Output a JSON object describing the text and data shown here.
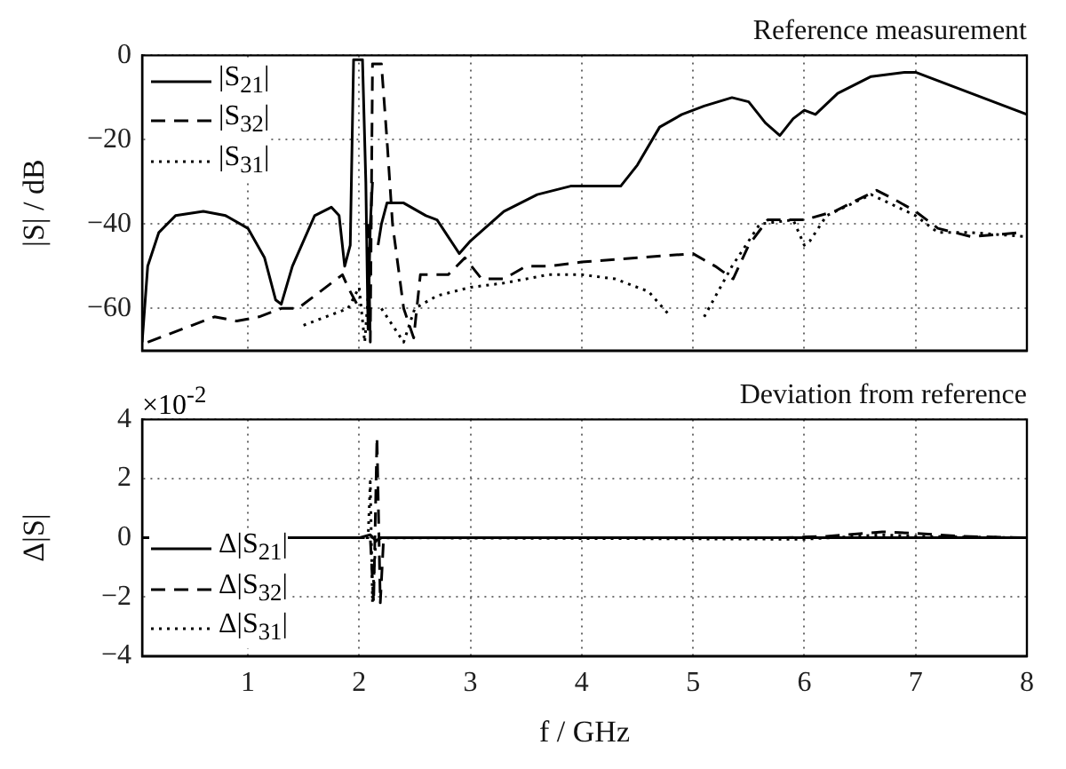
{
  "chart_data": [
    {
      "type": "line",
      "title": "Reference measurement",
      "ylabel": "|S| / dB",
      "xlim": [
        0.05,
        8
      ],
      "xticks": [
        1,
        2,
        3,
        4,
        5,
        6,
        7,
        8
      ],
      "ylim": [
        -70,
        0
      ],
      "yticks": [
        {
          "value": -60,
          "label": "−60"
        },
        {
          "value": -40,
          "label": "−40"
        },
        {
          "value": -20,
          "label": "−20"
        },
        0
      ],
      "grid": true,
      "legend": "top left",
      "tick_labels": "y",
      "series": [
        {
          "name": "|S$_{21}$|",
          "color": "#000000",
          "line_style": "solid",
          "x": [
            0.05,
            0.1,
            0.2,
            0.35,
            0.6,
            0.8,
            1.0,
            1.15,
            1.25,
            1.3,
            1.4,
            1.6,
            1.75,
            1.82,
            1.87,
            1.92,
            1.95,
            2.03,
            2.06,
            2.08,
            2.1,
            2.12,
            2.14,
            2.17,
            2.2,
            2.25,
            2.4,
            2.6,
            2.7,
            2.8,
            2.9,
            3.0,
            3.3,
            3.6,
            3.9,
            4.0,
            4.35,
            4.5,
            4.7,
            4.9,
            5.1,
            5.35,
            5.5,
            5.65,
            5.78,
            5.9,
            6.0,
            6.1,
            6.3,
            6.6,
            6.9,
            7.0,
            7.2,
            7.5,
            7.8,
            8.0
          ],
          "values": [
            -68,
            -50,
            -42,
            -38,
            -37,
            -38,
            -41,
            -48,
            -58,
            -59,
            -50,
            -38,
            -36,
            -38,
            -50,
            -45,
            -1,
            -1,
            -30,
            -65,
            -40,
            -30,
            null,
            -45,
            -40,
            -35,
            -35,
            -38,
            -39,
            -43,
            -47,
            -44,
            -37,
            -33,
            -31,
            -31,
            -31,
            -26,
            -17,
            -14,
            -12,
            -10,
            -11,
            -16,
            -19,
            -15,
            -13,
            -14,
            -9,
            -5,
            -4,
            -4,
            -6,
            -9,
            -12,
            -14
          ]
        },
        {
          "name": "|S$_{32}$|",
          "color": "#000000",
          "line_style": "dashed",
          "x": [
            0.1,
            0.3,
            0.5,
            0.7,
            0.9,
            1.1,
            1.3,
            1.45,
            1.6,
            1.75,
            1.85,
            1.9,
            2.0,
            2.05,
            2.08,
            2.1,
            2.12,
            2.2,
            2.25,
            2.3,
            2.4,
            2.49,
            2.55,
            2.8,
            2.95,
            3.1,
            3.3,
            3.5,
            3.7,
            4.0,
            4.5,
            5.0,
            5.2,
            5.36,
            5.5,
            5.67,
            6.0,
            6.27,
            6.65,
            6.8,
            7.0,
            7.2,
            7.5,
            7.95
          ],
          "values": [
            -68,
            -66,
            -64,
            -62,
            -63,
            -62,
            -60,
            -60,
            -57,
            -54,
            -52,
            -55,
            -60,
            null,
            -40,
            -68,
            -2,
            -2,
            -20,
            -40,
            -60,
            -67,
            -52,
            -52,
            -48,
            -53,
            -53,
            -50,
            -50,
            -49,
            -48,
            -47,
            -50,
            -53,
            -45,
            -39,
            -39,
            -37,
            -32,
            -34,
            -37,
            -41,
            -43,
            -42
          ]
        },
        {
          "name": "|S$_{31}$|",
          "color": "#000000",
          "line_style": "dotted",
          "x": [
            1.5,
            1.7,
            1.9,
            2.0,
            2.05,
            2.1,
            2.15,
            2.2,
            2.4,
            2.5,
            2.7,
            3.0,
            3.3,
            3.7,
            4.0,
            4.3,
            4.6,
            4.8,
            4.9,
            5.0,
            5.1,
            5.35,
            5.6,
            5.9,
            6.0,
            6.05,
            6.2,
            6.6,
            7.0,
            7.2,
            7.5,
            8.0
          ],
          "values": [
            -64,
            -62,
            -60,
            -55,
            -68,
            -50,
            null,
            -60,
            -68,
            -60,
            -57,
            -55,
            -54,
            -52,
            -52,
            -53,
            -56,
            -62,
            null,
            null,
            -62,
            -50,
            -40,
            -39,
            -45,
            -44,
            -38,
            -33,
            -38,
            -42,
            -42,
            -43
          ]
        }
      ]
    },
    {
      "type": "line",
      "title": "Deviation from reference",
      "ylabel": "Δ|S|",
      "xlabel": "f / GHz",
      "annotations": [
        "×10$^{-2}$"
      ],
      "xlim": [
        0.05,
        8
      ],
      "xticks": [
        1,
        2,
        3,
        4,
        5,
        6,
        7,
        8
      ],
      "ylim": [
        -4,
        4
      ],
      "yticks": [
        {
          "value": -4,
          "label": "−4"
        },
        {
          "value": -2,
          "label": "−2"
        },
        0,
        2,
        4
      ],
      "grid": true,
      "legend": "bottom left",
      "series": [
        {
          "name": "Δ|S$_{21}$|",
          "color": "#000000",
          "line_style": "solid",
          "x": [
            0.05,
            2.0,
            2.1,
            2.15,
            2.2,
            4.0,
            6.0,
            8.0
          ],
          "values": [
            0,
            0,
            0.1,
            -0.1,
            0,
            0,
            0,
            0
          ]
        },
        {
          "name": "Δ|S$_{32}$|",
          "color": "#000000",
          "line_style": "dashed",
          "x": [
            0.05,
            2.1,
            2.13,
            2.16,
            2.19,
            2.22,
            5.8,
            6.2,
            6.7,
            7.0,
            7.4,
            8.0
          ],
          "values": [
            0,
            0,
            -2.2,
            3.4,
            -2.2,
            0,
            0,
            0.05,
            0.2,
            0.15,
            0.05,
            0
          ]
        },
        {
          "name": "Δ|S$_{31}$|",
          "color": "#000000",
          "line_style": "dotted",
          "x": [
            0.05,
            2.08,
            2.1,
            2.12,
            2.15,
            6.0,
            6.7,
            7.0,
            8.0
          ],
          "values": [
            0,
            0,
            1.9,
            -2.2,
            0,
            -0.05,
            0.1,
            0.05,
            0
          ]
        }
      ]
    }
  ]
}
